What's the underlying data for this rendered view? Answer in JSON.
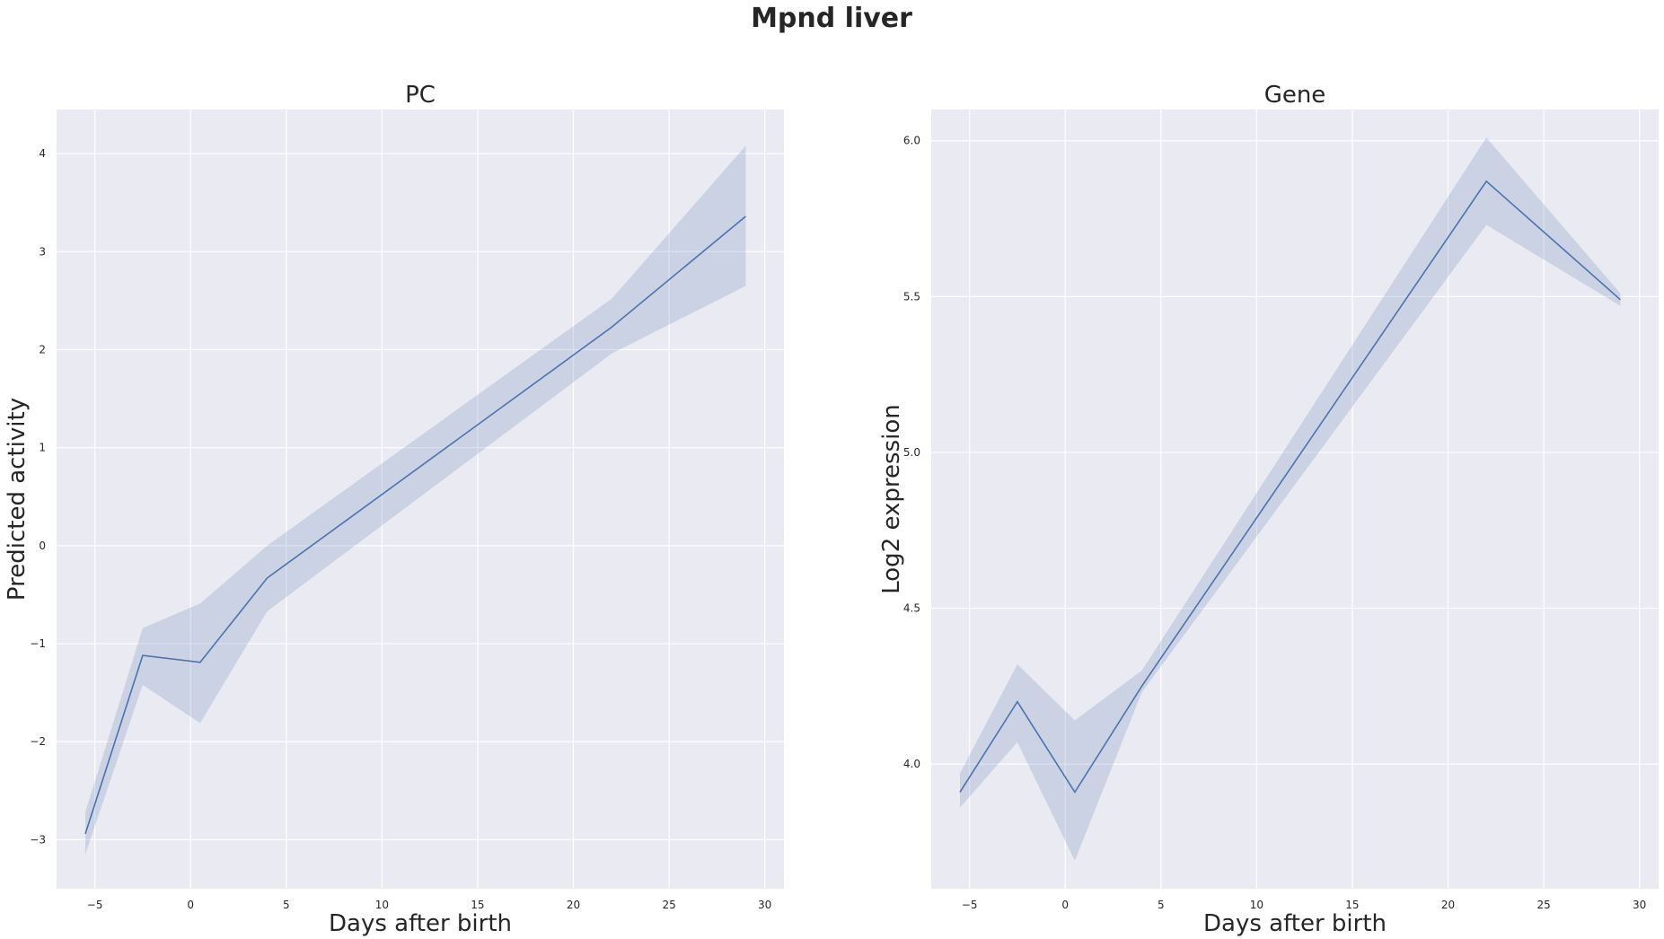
{
  "figure": {
    "title": "Mpnd liver"
  },
  "colors": {
    "panel_bg": "#EAEAF2",
    "grid": "#FFFFFF",
    "line": "#4C72B0",
    "text": "#262626"
  },
  "chart_data": [
    {
      "type": "line",
      "title": "PC",
      "xlabel": "Days after birth",
      "ylabel": "Predicted activity",
      "xlim": [
        -7,
        31
      ],
      "ylim": [
        -3.5,
        4.45
      ],
      "xticks": [
        -5,
        0,
        5,
        10,
        15,
        20,
        25,
        30
      ],
      "xtick_labels": [
        "−5",
        "0",
        "5",
        "10",
        "15",
        "20",
        "25",
        "30"
      ],
      "yticks": [
        -3,
        -2,
        -1,
        0,
        1,
        2,
        3,
        4
      ],
      "ytick_labels": [
        "−3",
        "−2",
        "−1",
        "0",
        "1",
        "2",
        "3",
        "4"
      ],
      "grid": true,
      "series": [
        {
          "x": [
            -5.5,
            -2.5,
            0.5,
            4,
            22,
            29
          ],
          "y": [
            -2.94,
            -1.12,
            -1.19,
            -0.33,
            2.23,
            3.36
          ],
          "ci_lower": [
            -3.15,
            -1.42,
            -1.81,
            -0.67,
            1.96,
            2.65
          ],
          "ci_upper": [
            -2.72,
            -0.84,
            -0.59,
            0.0,
            2.52,
            4.08
          ]
        }
      ]
    },
    {
      "type": "line",
      "title": "Gene",
      "xlabel": "Days after birth",
      "ylabel": "Log2 expression",
      "xlim": [
        -7,
        31
      ],
      "ylim": [
        3.6,
        6.1
      ],
      "xticks": [
        -5,
        0,
        5,
        10,
        15,
        20,
        25,
        30
      ],
      "xtick_labels": [
        "−5",
        "0",
        "5",
        "10",
        "15",
        "20",
        "25",
        "30"
      ],
      "yticks": [
        4.0,
        4.5,
        5.0,
        5.5,
        6.0
      ],
      "ytick_labels": [
        "4.0",
        "4.5",
        "5.0",
        "5.5",
        "6.0"
      ],
      "grid": true,
      "series": [
        {
          "x": [
            -5.5,
            -2.5,
            0.5,
            4,
            22,
            29
          ],
          "y": [
            3.91,
            4.2,
            3.91,
            4.25,
            5.87,
            5.49
          ],
          "ci_lower": [
            3.86,
            4.07,
            3.69,
            4.23,
            5.73,
            5.47
          ],
          "ci_upper": [
            3.97,
            4.32,
            4.14,
            4.3,
            6.01,
            5.51
          ]
        }
      ]
    }
  ]
}
